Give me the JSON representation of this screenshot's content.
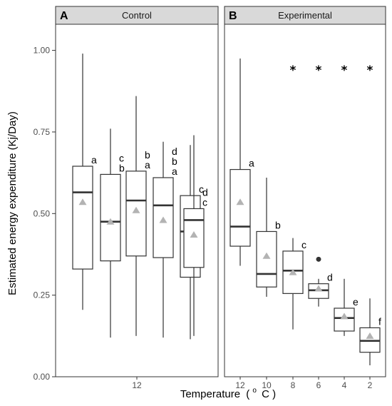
{
  "chart_data": {
    "type": "boxplot",
    "ylabel": "Estimated energy expenditure (Kj/Day)",
    "xlabel": "Temperature",
    "xlabel_superscript": "o",
    "xlabel_unit": "C",
    "ylim": [
      0,
      1.08
    ],
    "yticks": [
      "0.00",
      "0.25",
      "0.50",
      "0.75",
      "1.00"
    ],
    "ytick_values": [
      0,
      0.25,
      0.5,
      0.75,
      1.0
    ],
    "grid": false,
    "mean_marker": "triangle",
    "colors": {
      "mean": "#b3b3b3",
      "strip": "#d9d9d9",
      "box": "#333333",
      "outlier": "#333333"
    },
    "panels": [
      {
        "letter": "A",
        "strip": "Control",
        "x_tick_labels": [
          "12"
        ],
        "boxes": [
          {
            "min": 0.205,
            "q1": 0.33,
            "median": 0.565,
            "q3": 0.645,
            "max": 0.99,
            "mean": 0.535,
            "letters": [
              "a"
            ],
            "outliers": []
          },
          {
            "min": 0.12,
            "q1": 0.355,
            "median": 0.475,
            "q3": 0.62,
            "max": 0.76,
            "mean": 0.475,
            "letters": [
              "c",
              "b"
            ],
            "outliers": []
          },
          {
            "min": 0.125,
            "q1": 0.37,
            "median": 0.54,
            "q3": 0.63,
            "max": 0.86,
            "mean": 0.51,
            "letters": [
              "b",
              "a"
            ],
            "outliers": []
          },
          {
            "min": 0.12,
            "q1": 0.365,
            "median": 0.525,
            "q3": 0.61,
            "max": 0.72,
            "mean": 0.48,
            "letters": [
              "d",
              "b",
              "a"
            ],
            "outliers": []
          },
          {
            "min": 0.115,
            "q1": 0.305,
            "median": 0.445,
            "q3": 0.555,
            "max": 0.71,
            "mean": 0.435,
            "letters": [
              "c"
            ],
            "outliers": []
          },
          {
            "min": 0.125,
            "q1": 0.335,
            "median": 0.48,
            "q3": 0.515,
            "max": 0.74,
            "mean": 0.435,
            "letters": [
              "d",
              "c"
            ],
            "outliers": []
          }
        ],
        "stars": []
      },
      {
        "letter": "B",
        "strip": "Experimental",
        "x_tick_labels": [
          "12",
          "10",
          "8",
          "6",
          "4",
          "2"
        ],
        "boxes": [
          {
            "min": 0.34,
            "q1": 0.4,
            "median": 0.46,
            "q3": 0.635,
            "max": 0.975,
            "mean": 0.535,
            "letters": [
              "a"
            ],
            "outliers": []
          },
          {
            "min": 0.245,
            "q1": 0.275,
            "median": 0.315,
            "q3": 0.445,
            "max": 0.61,
            "mean": 0.37,
            "letters": [
              "b"
            ],
            "outliers": []
          },
          {
            "min": 0.145,
            "q1": 0.255,
            "median": 0.325,
            "q3": 0.385,
            "max": 0.425,
            "mean": 0.32,
            "letters": [
              "c"
            ],
            "outliers": []
          },
          {
            "min": 0.215,
            "q1": 0.24,
            "median": 0.265,
            "q3": 0.285,
            "max": 0.3,
            "mean": 0.27,
            "letters": [
              "d"
            ],
            "outliers": [
              0.36
            ]
          },
          {
            "min": 0.125,
            "q1": 0.14,
            "median": 0.18,
            "q3": 0.21,
            "max": 0.3,
            "mean": 0.185,
            "letters": [
              "e"
            ],
            "outliers": []
          },
          {
            "min": 0.035,
            "q1": 0.075,
            "median": 0.11,
            "q3": 0.15,
            "max": 0.24,
            "mean": 0.125,
            "letters": [
              "f"
            ],
            "outliers": []
          }
        ],
        "stars": [
          "*",
          "*",
          "*",
          "*"
        ]
      }
    ]
  }
}
